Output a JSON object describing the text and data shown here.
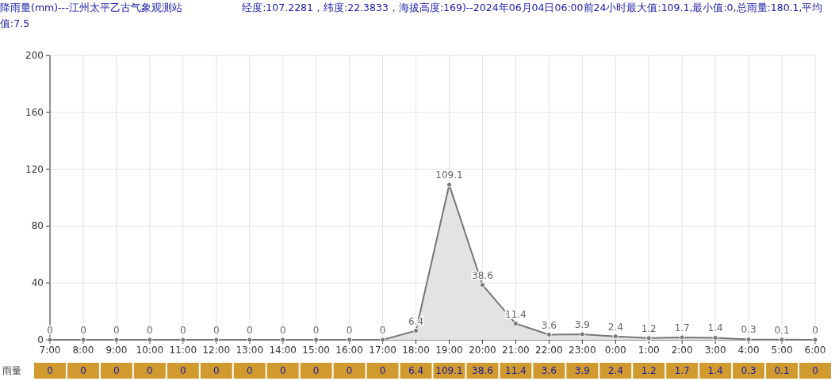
{
  "chart_data": [
    {
      "type": "area",
      "title": "降雨量(mm)---江州太平乙古气象观测站",
      "subtitle": "经度:107.2281，纬度:22.3833，海拔高度:169)--2024年06月04日06:00前24小时最大值:109.1,最小值:0,总雨量:180.1,平均值:7.5",
      "categories": [
        "7:00",
        "8:00",
        "9:00",
        "10:00",
        "11:00",
        "12:00",
        "13:00",
        "14:00",
        "15:00",
        "16:00",
        "17:00",
        "18:00",
        "19:00",
        "20:00",
        "21:00",
        "22:00",
        "23:00",
        "0:00",
        "1:00",
        "2:00",
        "3:00",
        "4:00",
        "5:00",
        "6:00"
      ],
      "series": [
        {
          "color": "#777777",
          "values": [
            0,
            0,
            0,
            0,
            0,
            0,
            0,
            0,
            0,
            0,
            0,
            6.4,
            109.1,
            38.6,
            11.4,
            3.6,
            3.9,
            2.4,
            1.2,
            1.7,
            1.4,
            0.3,
            0.1,
            0
          ],
          "value_labels": [
            "0",
            "0",
            "0",
            "0",
            "0",
            "0",
            "0",
            "0",
            "0",
            "0",
            "0",
            "6.4",
            "109.1",
            "38.6",
            "11.4",
            "3.6",
            "3.9",
            "2.4",
            "1.2",
            "1.7",
            "1.4",
            "0.3",
            "0.1",
            "0"
          ]
        }
      ],
      "ylim": [
        0,
        200
      ],
      "yticks": [
        0,
        40,
        80,
        120,
        160,
        200
      ],
      "grid": true,
      "marker": "circle"
    },
    {
      "type": "other",
      "series": [
        {
          "name": "雨量",
          "color": "#d19a2e",
          "values": [
            0,
            0,
            0,
            0,
            0,
            0,
            0,
            0,
            0,
            0,
            0,
            6.4,
            109.1,
            38.6,
            11.4,
            3.6,
            3.9,
            2.4,
            1.2,
            1.7,
            1.4,
            0.3,
            0.1,
            0
          ]
        }
      ],
      "data_labels": true
    }
  ]
}
